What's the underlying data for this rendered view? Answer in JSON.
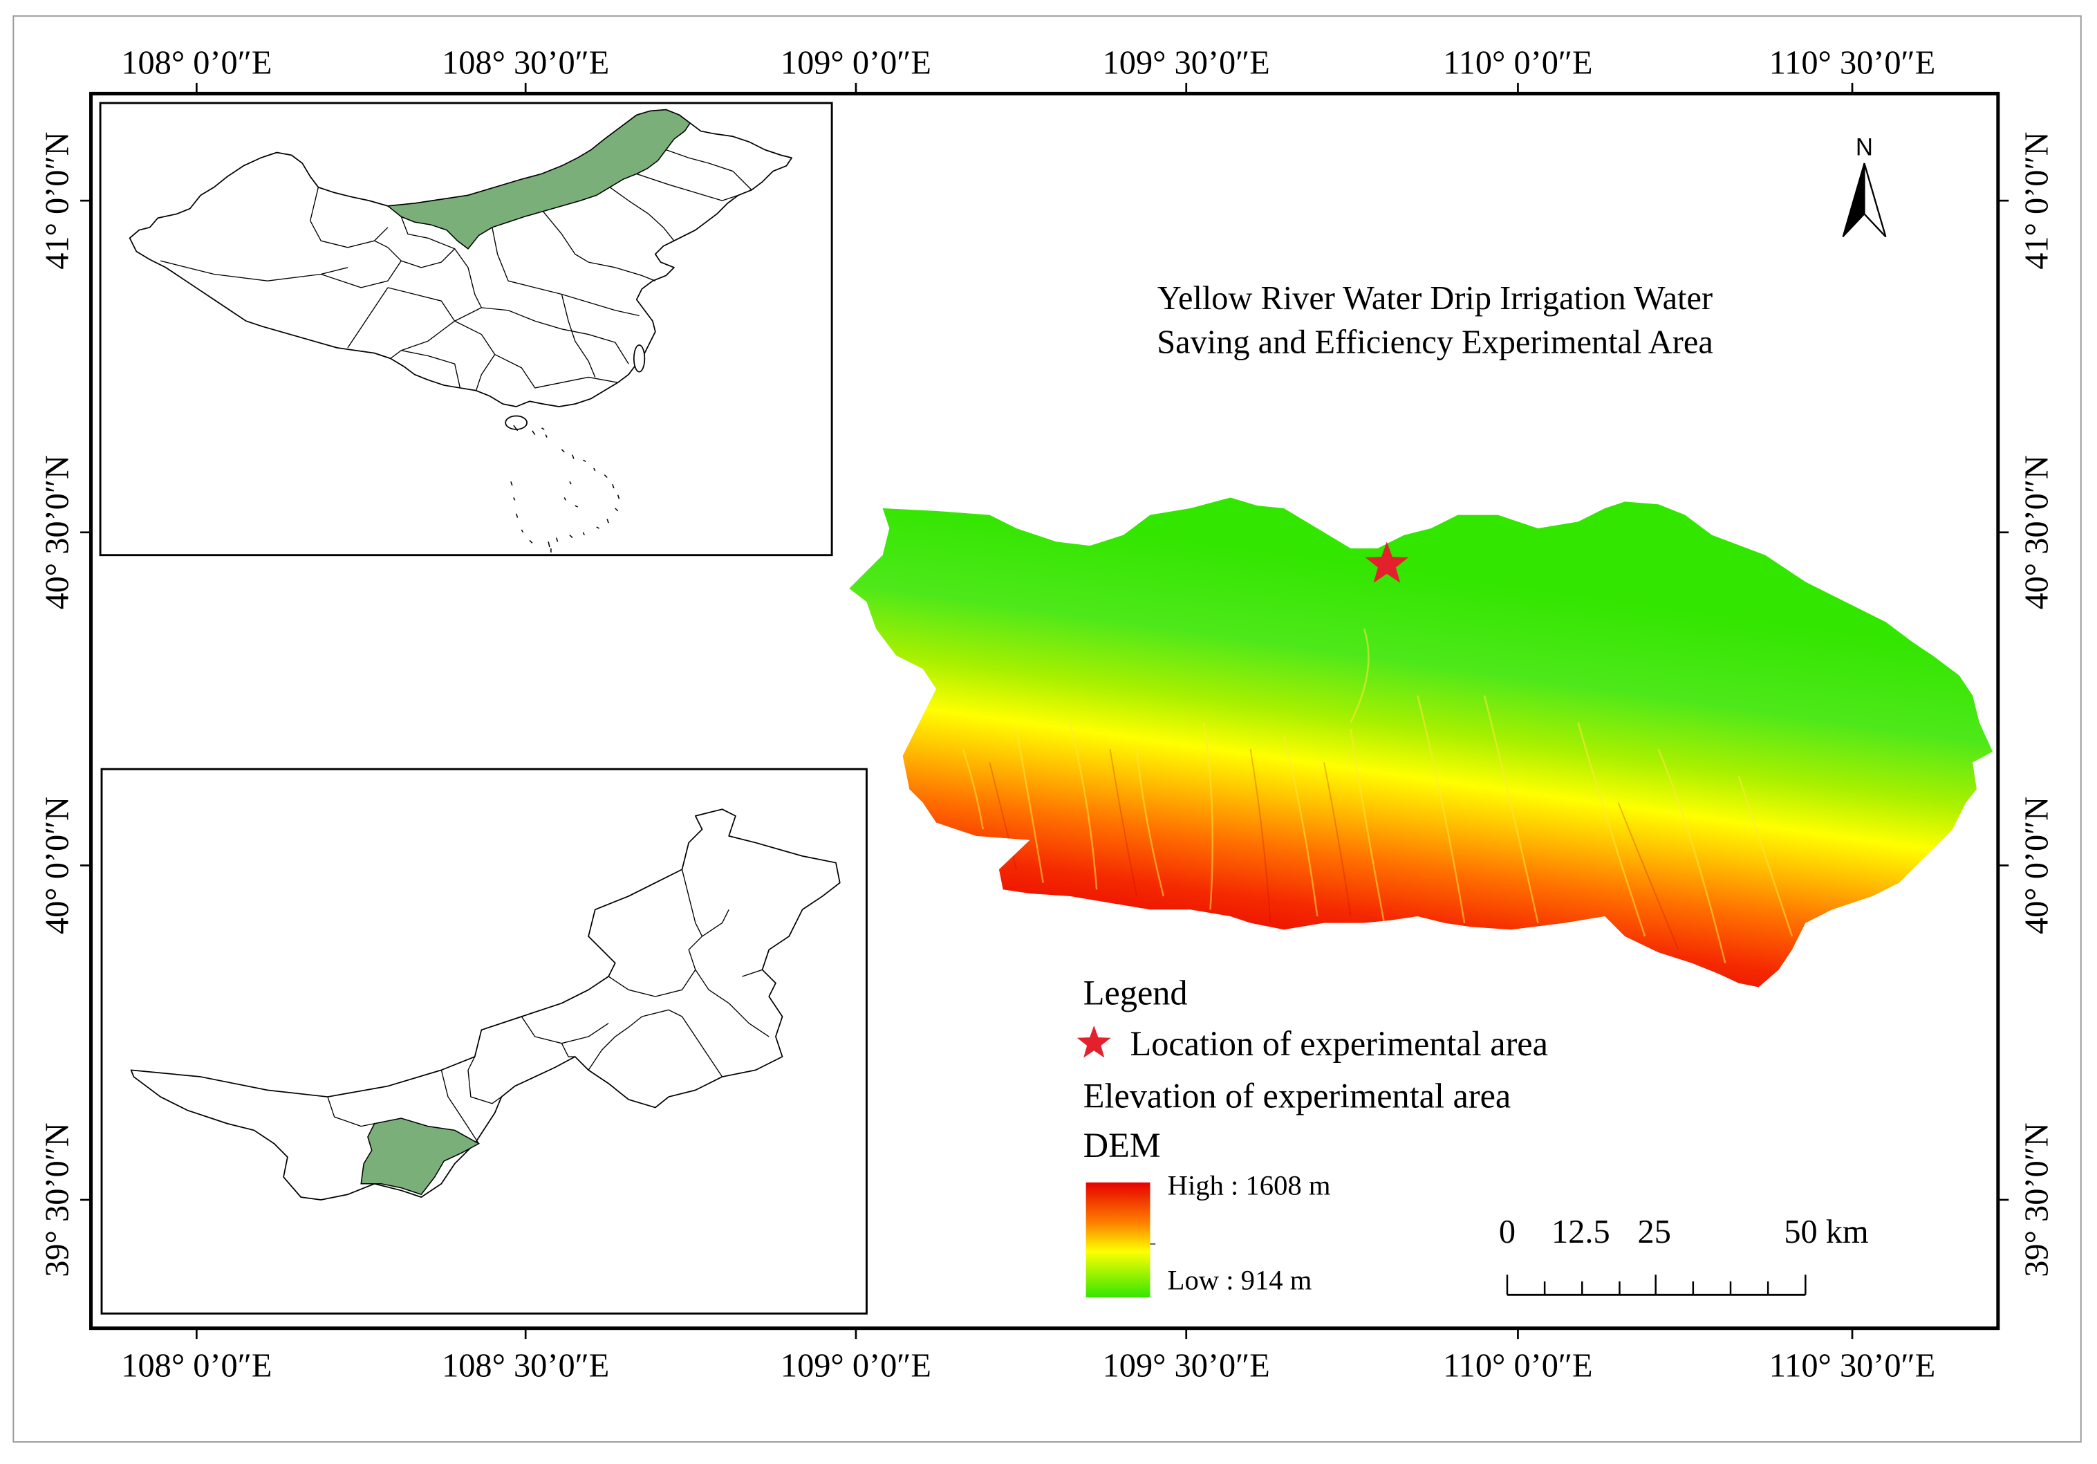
{
  "title": {
    "line1": "Yellow River Water Drip Irrigation Water",
    "line2": "Saving and Efficiency Experimental Area"
  },
  "north_arrow": {
    "label": "N"
  },
  "grid_labels": {
    "top": [
      "108° 0’0″E",
      "108° 30’0″E",
      "109° 0’0″E",
      "109° 30’0″E",
      "110° 0’0″E",
      "110° 30’0″E"
    ],
    "bottom": [
      "108° 0’0″E",
      "108° 30’0″E",
      "109° 0’0″E",
      "109° 30’0″E",
      "110° 0’0″E",
      "110° 30’0″E"
    ],
    "left": [
      "41° 0’0″N",
      "40° 30’0″N",
      "40° 0’0″N",
      "39° 30’0″N"
    ],
    "right": [
      "41° 0’0″N",
      "40° 30’0″N",
      "40° 0’0″N",
      "39° 30’0″N"
    ]
  },
  "legend": {
    "heading": "Legend",
    "location_label": "Location of experimental area",
    "elevation_label": "Elevation of experimental area",
    "dem_label": "DEM",
    "high_label": "High : 1608 m",
    "low_label": "Low : 914 m"
  },
  "scale_bar": {
    "labels": [
      "0",
      "12.5",
      "25",
      "50 km"
    ]
  },
  "colors": {
    "province_highlight": "#7aaf7a",
    "location_star": "#e3202c",
    "dem_high": "#e60000",
    "dem_mid": "#ffff00",
    "dem_low": "#33e600"
  }
}
